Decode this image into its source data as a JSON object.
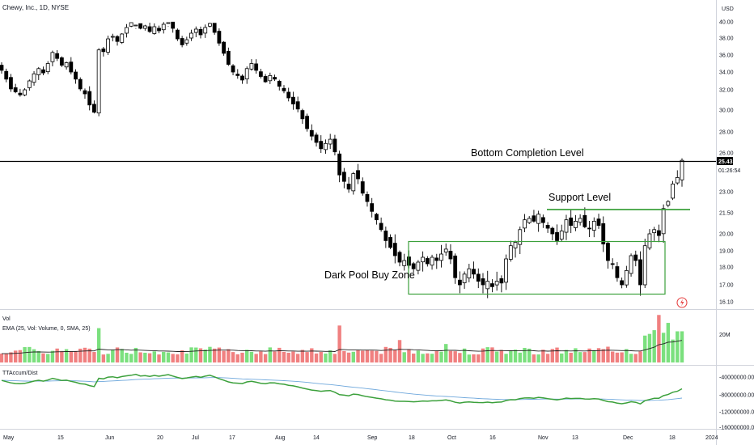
{
  "symbol_title": "Chewy, Inc., 1D, NYSE",
  "currency": "USD",
  "countdown": "01:26:54",
  "last_price": "25.43",
  "volume_pane": {
    "title": "Vol",
    "indicator": "EMA (25, Vol: Volume, 0, SMA, 25)",
    "tick_label": "20M"
  },
  "accum_pane": {
    "title": "TTAccum/Dist",
    "tick_labels": [
      "-40000000.00",
      "-80000000.00",
      "-120000000.00",
      "-160000000.00"
    ]
  },
  "x_labels": [
    "May",
    "15",
    "Jun",
    "20",
    "Jul",
    "17",
    "Aug",
    "14",
    "Sep",
    "18",
    "Oct",
    "16",
    "Nov",
    "13",
    "Dec",
    "18",
    "2024"
  ],
  "price_ticks": [
    "40.00",
    "38.00",
    "36.00",
    "34.00",
    "32.00",
    "30.00",
    "28.00",
    "26.00",
    "23.00",
    "21.50",
    "20.00",
    "19.00",
    "18.00",
    "17.00",
    "16.10"
  ],
  "annotations": {
    "bottom_completion": "Bottom Completion Level",
    "support": "Support Level",
    "dark_pool": "Dark Pool Buy Zone"
  },
  "colors": {
    "up": "#ffffff",
    "down": "#000000",
    "vol_up": "#7be07e",
    "vol_down": "#f08080",
    "accum": "#3ba03b",
    "accum_signal": "#6fa8dc",
    "levels": "#3ca03c"
  },
  "chart_data": {
    "type": "candlestick",
    "title": "Chewy, Inc., 1D, NYSE",
    "y_axis": {
      "scale": "log",
      "range": [
        16.1,
        41.5
      ],
      "unit": "USD"
    },
    "x_axis": {
      "range": [
        "2023-05-01",
        "2024-01-01"
      ]
    },
    "levels": [
      {
        "name": "Bottom Completion Level",
        "price": 25.43
      },
      {
        "name": "Support Level",
        "price": 21.6,
        "from": "2023-11-09",
        "to": "2023-12-20"
      }
    ],
    "zones": [
      {
        "name": "Dark Pool Buy Zone",
        "price_range": [
          16.6,
          19.6
        ],
        "from": "2023-09-18",
        "to": "2023-12-14"
      }
    ],
    "closes": [
      34.2,
      33.2,
      32.1,
      31.8,
      31.5,
      32.0,
      33.0,
      33.8,
      34.4,
      33.9,
      35.0,
      36.3,
      35.6,
      34.8,
      35.1,
      34.0,
      33.2,
      32.1,
      31.6,
      30.5,
      29.8,
      36.6,
      36.4,
      37.9,
      38.2,
      37.6,
      38.5,
      39.3,
      39.9,
      40.4,
      39.2,
      39.5,
      38.8,
      39.4,
      38.9,
      39.7,
      40.1,
      39.2,
      37.9,
      37.2,
      37.8,
      38.6,
      39.1,
      38.4,
      39.3,
      39.8,
      38.7,
      37.4,
      36.2,
      34.9,
      34.0,
      33.6,
      33.1,
      34.4,
      35.0,
      34.2,
      33.5,
      32.9,
      33.6,
      33.2,
      32.4,
      31.9,
      31.2,
      30.6,
      30.1,
      29.2,
      28.3,
      27.6,
      27.0,
      26.4,
      26.9,
      27.3,
      26.1,
      24.3,
      23.8,
      23.2,
      24.4,
      24.0,
      22.9,
      22.3,
      21.6,
      21.0,
      20.3,
      19.6,
      19.2,
      18.7,
      18.3,
      18.4,
      18.1,
      17.9,
      18.3,
      18.6,
      18.2,
      18.6,
      18.4,
      18.8,
      19.1,
      18.5,
      17.4,
      17.0,
      17.6,
      17.9,
      17.6,
      17.2,
      17.0,
      17.2,
      16.9,
      17.2,
      17.1,
      18.5,
      19.3,
      19.5,
      20.3,
      21.0,
      21.1,
      20.9,
      21.4,
      20.8,
      20.4,
      20.0,
      19.6,
      20.2,
      21.0,
      20.6,
      20.9,
      21.1,
      20.5,
      20.4,
      20.9,
      20.6,
      19.4,
      18.4,
      18.2,
      17.4,
      17.0,
      17.8,
      18.7,
      18.4,
      17.0,
      19.3,
      20.0,
      20.3,
      19.9,
      21.8,
      22.3,
      23.6,
      24.1,
      25.43
    ],
    "volume_unit": "M",
    "volume_range": [
      0,
      38
    ],
    "accum_dist_range": [
      -170000000,
      -20000000
    ]
  }
}
